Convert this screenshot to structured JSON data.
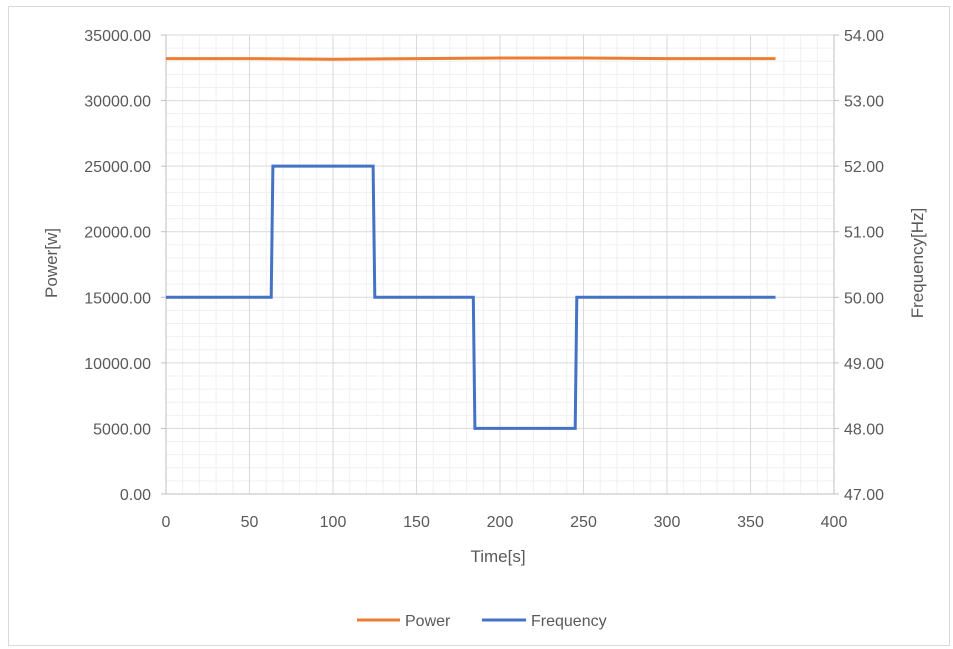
{
  "chart_data": {
    "type": "line",
    "title": "",
    "xlabel": "Time[s]",
    "ylabel": "Power[w]",
    "y2label": "Frequency[Hz]",
    "xlim": [
      0,
      400
    ],
    "ylim": [
      0,
      35000
    ],
    "y2lim": [
      47,
      54
    ],
    "x_ticks": [
      0,
      50,
      100,
      150,
      200,
      250,
      300,
      350,
      400
    ],
    "x_tick_labels": [
      "0",
      "50",
      "100",
      "150",
      "200",
      "250",
      "300",
      "350",
      "400"
    ],
    "y_ticks": [
      0,
      5000,
      10000,
      15000,
      20000,
      25000,
      30000,
      35000
    ],
    "y_tick_labels": [
      "0.00",
      "5000.00",
      "10000.00",
      "15000.00",
      "20000.00",
      "25000.00",
      "30000.00",
      "35000.00"
    ],
    "y2_ticks": [
      47,
      48,
      49,
      50,
      51,
      52,
      53,
      54
    ],
    "y2_tick_labels": [
      "47.00",
      "48.00",
      "49.00",
      "50.00",
      "51.00",
      "52.00",
      "53.00",
      "54.00"
    ],
    "grid": "on",
    "legend_position": "bottom",
    "series": [
      {
        "name": "Power",
        "axis": "left",
        "color": "#ed7d31",
        "x": [
          0,
          50,
          100,
          150,
          200,
          250,
          300,
          365
        ],
        "values": [
          33200,
          33200,
          33150,
          33200,
          33250,
          33250,
          33200,
          33200
        ]
      },
      {
        "name": "Frequency",
        "axis": "right",
        "color": "#4472c4",
        "x": [
          0,
          63,
          64,
          124,
          125,
          184,
          185,
          245,
          246,
          365
        ],
        "values": [
          50.0,
          50.0,
          52.0,
          52.0,
          50.0,
          50.0,
          48.0,
          48.0,
          50.0,
          50.0
        ]
      }
    ]
  }
}
